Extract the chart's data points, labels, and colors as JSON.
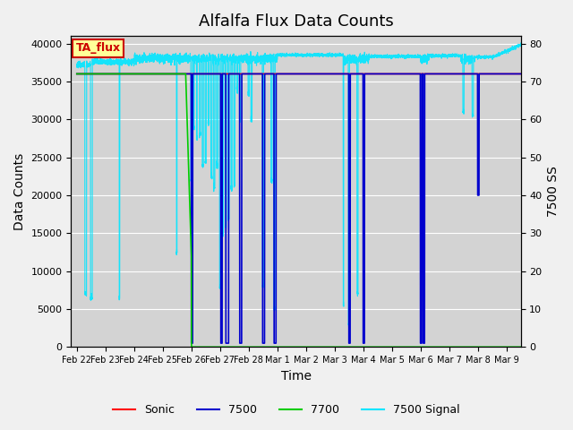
{
  "title": "Alfalfa Flux Data Counts",
  "xlabel": "Time",
  "ylabel_left": "Data Counts",
  "ylabel_right": "7500 SS",
  "annotation_text": "TA_flux",
  "ylim_left": [
    0,
    41000
  ],
  "ylim_right": [
    0,
    82
  ],
  "yticks_left": [
    0,
    5000,
    10000,
    15000,
    20000,
    25000,
    30000,
    35000,
    40000
  ],
  "yticks_right": [
    0,
    10,
    20,
    30,
    40,
    50,
    60,
    70,
    80
  ],
  "x_tick_labels": [
    "Feb 22",
    "Feb 23",
    "Feb 24",
    "Feb 25",
    "Feb 26",
    "Feb 27",
    "Feb 28",
    "Mar 1",
    "Mar 2",
    "Mar 3",
    "Mar 4",
    "Mar 5",
    "Mar 6",
    "Mar 7",
    "Mar 8",
    "Mar 9"
  ],
  "x_tick_positions": [
    0,
    1,
    2,
    3,
    4,
    5,
    6,
    7,
    8,
    9,
    10,
    11,
    12,
    13,
    14,
    15
  ],
  "colors": {
    "sonic": "#ff0000",
    "s7500": "#0000cd",
    "s7700": "#00cc00",
    "signal": "#00e5ff",
    "background": "#d3d3d3",
    "annotation_bg": "#ffff99",
    "annotation_border": "#cc0000"
  },
  "flat_level": 36000,
  "legend_labels": [
    "Sonic",
    "7500",
    "7700",
    "7500 Signal"
  ]
}
